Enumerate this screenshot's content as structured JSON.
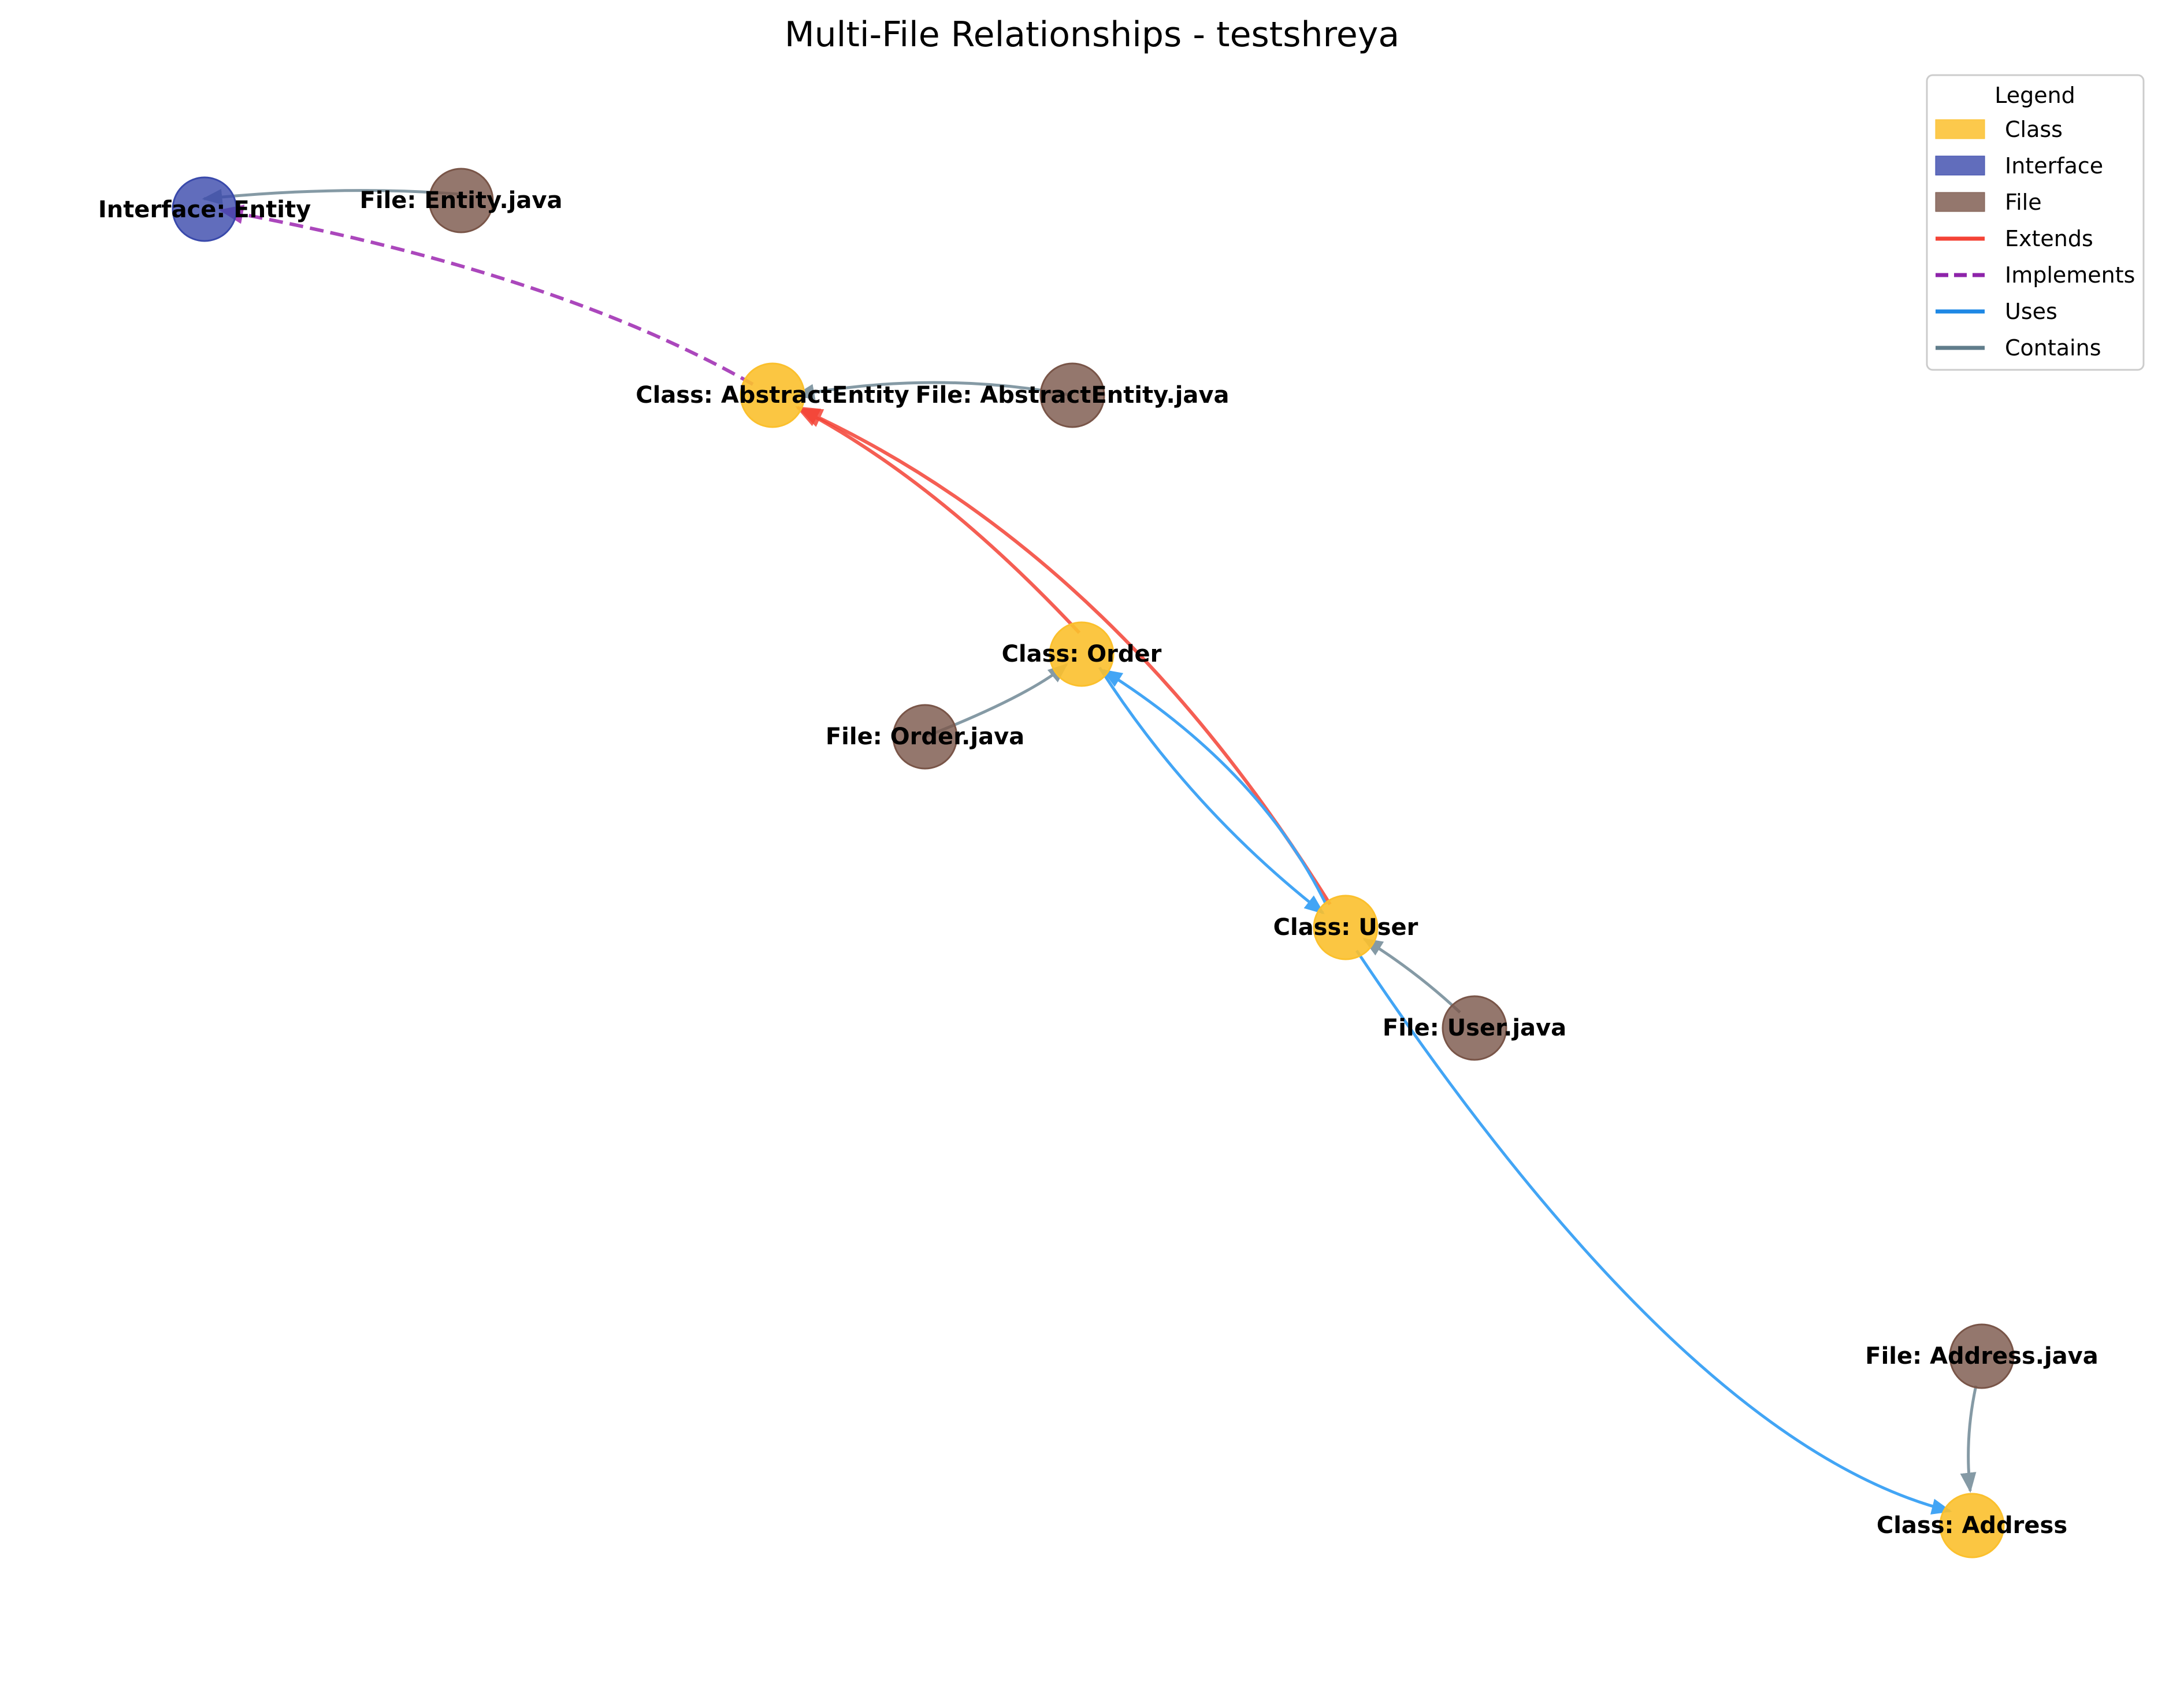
{
  "title": "Multi-File Relationships - testshreya",
  "legend": {
    "title": "Legend",
    "items": [
      {
        "label": "Class",
        "kind": "patch",
        "color": "#FBC02D"
      },
      {
        "label": "Interface",
        "kind": "patch",
        "color": "#3949AB"
      },
      {
        "label": "File",
        "kind": "patch",
        "color": "#795548"
      },
      {
        "label": "Extends",
        "kind": "line",
        "color": "#F44336",
        "dashed": false
      },
      {
        "label": "Implements",
        "kind": "line",
        "color": "#8E24AA",
        "dashed": true
      },
      {
        "label": "Uses",
        "kind": "line",
        "color": "#1E88E5",
        "dashed": false
      },
      {
        "label": "Contains",
        "kind": "line",
        "color": "#607D8B",
        "dashed": false
      }
    ]
  },
  "colors": {
    "class": "#FBC02D",
    "interface": "#3949AB",
    "file": "#795548",
    "extends": "#F44336",
    "implements": "#AB47BC",
    "uses": "#42A5F5",
    "contains": "#78909C"
  },
  "nodes": {
    "entity": {
      "label": "Interface: Entity",
      "type": "interface"
    },
    "entity_file": {
      "label": "File: Entity.java",
      "type": "file"
    },
    "abstract": {
      "label": "Class: AbstractEntity",
      "type": "class"
    },
    "abstract_file": {
      "label": "File: AbstractEntity.java",
      "type": "file"
    },
    "order": {
      "label": "Class: Order",
      "type": "class"
    },
    "order_file": {
      "label": "File: Order.java",
      "type": "file"
    },
    "user": {
      "label": "Class: User",
      "type": "class"
    },
    "user_file": {
      "label": "File: User.java",
      "type": "file"
    },
    "address_file": {
      "label": "File: Address.java",
      "type": "file"
    },
    "address": {
      "label": "Class: Address",
      "type": "class"
    }
  },
  "edges": [
    {
      "from": "entity_file",
      "to": "entity",
      "type": "contains"
    },
    {
      "from": "abstract_file",
      "to": "abstract",
      "type": "contains"
    },
    {
      "from": "order_file",
      "to": "order",
      "type": "contains"
    },
    {
      "from": "user_file",
      "to": "user",
      "type": "contains"
    },
    {
      "from": "address_file",
      "to": "address",
      "type": "contains"
    },
    {
      "from": "abstract",
      "to": "entity",
      "type": "implements"
    },
    {
      "from": "order",
      "to": "abstract",
      "type": "extends"
    },
    {
      "from": "user",
      "to": "abstract",
      "type": "extends"
    },
    {
      "from": "order",
      "to": "user",
      "type": "uses"
    },
    {
      "from": "user",
      "to": "order",
      "type": "uses"
    },
    {
      "from": "user",
      "to": "address",
      "type": "uses"
    }
  ]
}
